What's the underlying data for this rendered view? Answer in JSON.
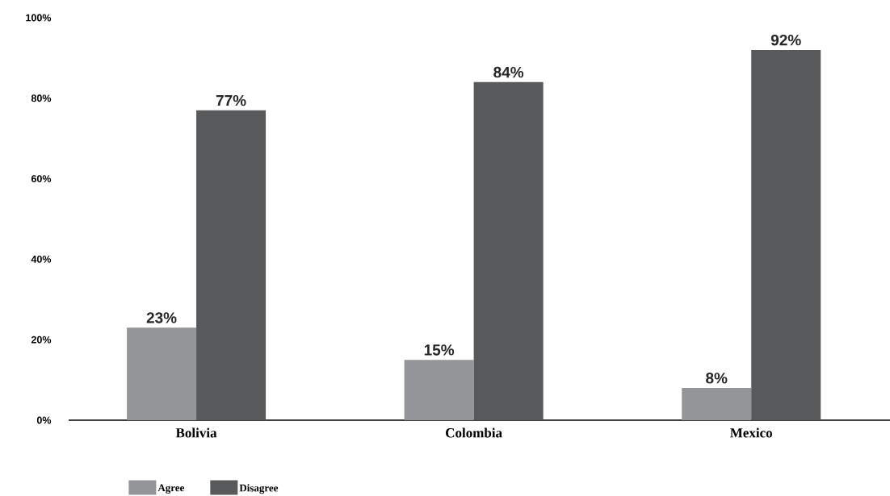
{
  "chart_data": {
    "type": "bar",
    "categories": [
      "Bolivia",
      "Colombia",
      "Mexico"
    ],
    "series": [
      {
        "name": "Agree",
        "color": "#939598",
        "values": [
          23,
          15,
          8
        ],
        "value_labels": [
          "23%",
          "15%",
          "8%"
        ]
      },
      {
        "name": "Disagree",
        "color": "#58595b",
        "values": [
          77,
          84,
          92
        ],
        "value_labels": [
          "77%",
          "84%",
          "92%"
        ]
      }
    ],
    "ylim": [
      0,
      100
    ],
    "yticks": [
      {
        "value": 0,
        "label": "0%"
      },
      {
        "value": 20,
        "label": "20%"
      },
      {
        "value": 40,
        "label": "40%"
      },
      {
        "value": 60,
        "label": "60%"
      },
      {
        "value": 80,
        "label": "80%"
      },
      {
        "value": 100,
        "label": "100%"
      }
    ],
    "grid": false,
    "legend": "bottom left"
  }
}
